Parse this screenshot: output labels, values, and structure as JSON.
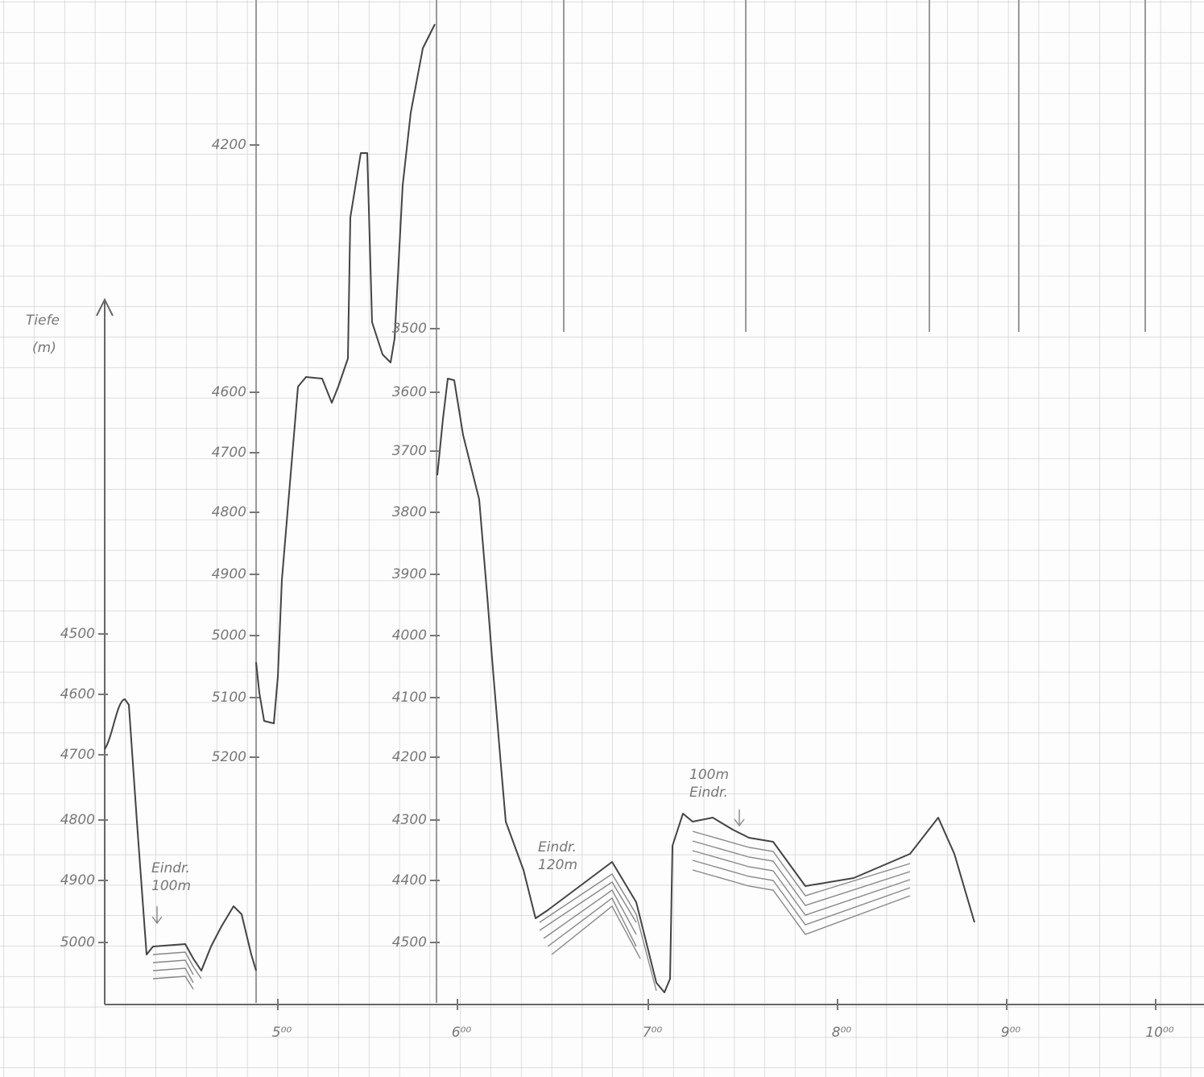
{
  "axis_label": {
    "title": "Tiefe",
    "unit": "(m)"
  },
  "depth_axes": [
    {
      "ticks": [
        4500,
        4600,
        4700,
        4800,
        4900,
        5000
      ]
    },
    {
      "ticks": [
        4200,
        4600,
        4700,
        4800,
        4900,
        5000,
        5100,
        5200
      ]
    },
    {
      "ticks": [
        3500,
        3600,
        3700,
        3800,
        3900,
        4000,
        4100,
        4200,
        4300,
        4400,
        4500
      ]
    }
  ],
  "time_labels": [
    "5⁰⁰",
    "6⁰⁰",
    "7⁰⁰",
    "8⁰⁰",
    "9⁰⁰",
    "10⁰⁰"
  ],
  "annotations": [
    {
      "lines": [
        "Eindr.",
        "100m"
      ]
    },
    {
      "lines": [
        "Eindr.",
        "120m"
      ]
    },
    {
      "lines": [
        "100m",
        "Eindr."
      ]
    }
  ]
}
